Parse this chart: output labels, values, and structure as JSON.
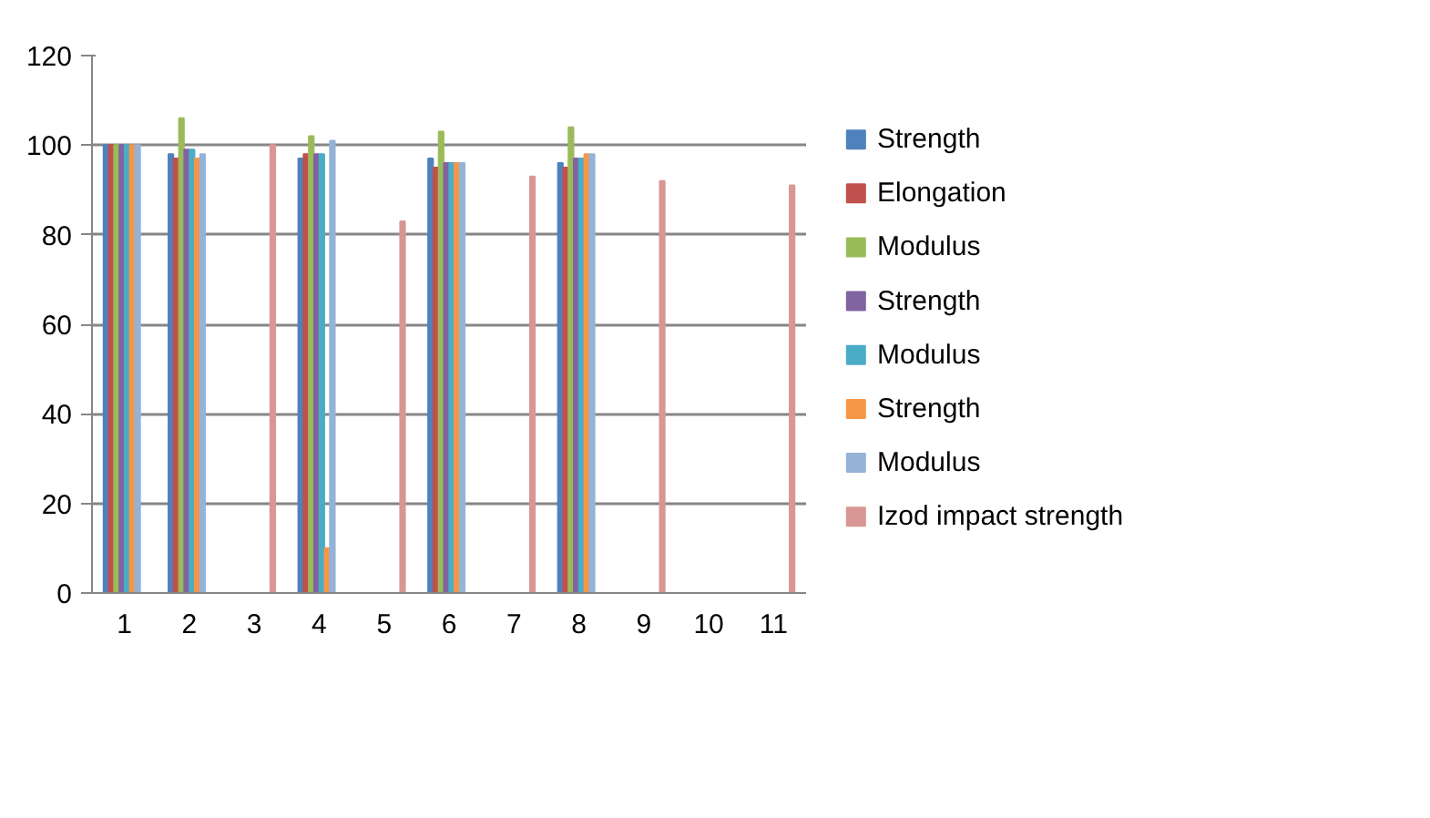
{
  "chart_data": {
    "type": "bar",
    "categories": [
      "1",
      "2",
      "3",
      "4",
      "5",
      "6",
      "7",
      "8",
      "9",
      "10",
      "11"
    ],
    "series": [
      {
        "name": "Strength",
        "color": "#4f81bd",
        "values": [
          100,
          98,
          null,
          97,
          null,
          97,
          null,
          96,
          null,
          null,
          null
        ]
      },
      {
        "name": "Elongation",
        "color": "#c0504d",
        "values": [
          100,
          97,
          null,
          98,
          null,
          95,
          null,
          95,
          null,
          null,
          null
        ]
      },
      {
        "name": "Modulus",
        "color": "#9bbb59",
        "values": [
          100,
          106,
          null,
          102,
          null,
          103,
          null,
          104,
          null,
          null,
          null
        ]
      },
      {
        "name": "Strength",
        "color": "#8064a2",
        "values": [
          100,
          99,
          null,
          98,
          null,
          96,
          null,
          97,
          null,
          null,
          null
        ]
      },
      {
        "name": "Modulus",
        "color": "#4bacc6",
        "values": [
          100,
          99,
          null,
          98,
          null,
          96,
          null,
          97,
          null,
          null,
          null
        ]
      },
      {
        "name": "Strength",
        "color": "#f79646",
        "values": [
          100,
          97,
          null,
          10,
          null,
          96,
          null,
          98,
          null,
          null,
          null
        ]
      },
      {
        "name": "Modulus",
        "color": "#95b3d7",
        "values": [
          100,
          98,
          null,
          101,
          null,
          96,
          null,
          98,
          null,
          null,
          null
        ]
      },
      {
        "name": "Izod impact strength",
        "color": "#d99694",
        "values": [
          null,
          null,
          100,
          null,
          83,
          null,
          93,
          null,
          92,
          null,
          91
        ]
      }
    ],
    "ylim": [
      0,
      120
    ],
    "yticks": [
      0,
      20,
      40,
      60,
      80,
      100,
      120
    ],
    "grid": "y",
    "legend": "right"
  }
}
